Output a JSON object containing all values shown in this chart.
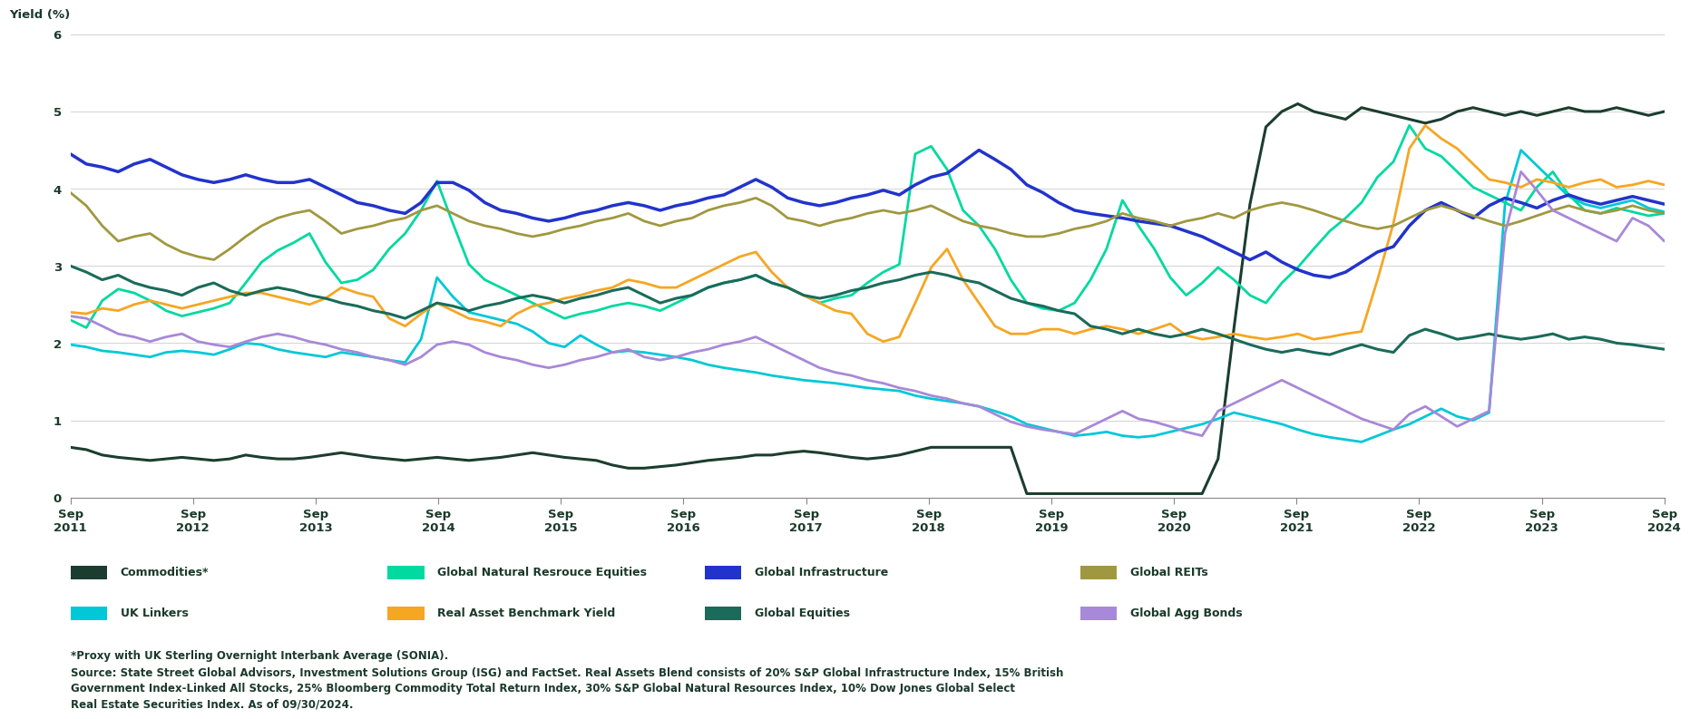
{
  "ylabel": "Yield (%)",
  "ylim": [
    0,
    6
  ],
  "yticks": [
    0,
    1,
    2,
    3,
    4,
    5,
    6
  ],
  "x_labels": [
    "Sep\n2011",
    "Sep\n2012",
    "Sep\n2013",
    "Sep\n2014",
    "Sep\n2015",
    "Sep\n2016",
    "Sep\n2017",
    "Sep\n2018",
    "Sep\n2019",
    "Sep\n2020",
    "Sep\n2021",
    "Sep\n2022",
    "Sep\n2023",
    "Sep\n2024"
  ],
  "background_color": "#ffffff",
  "text_color": "#1a3a2a",
  "footnote1": "*Proxy with UK Sterling Overnight Interbank Average (SONIA).",
  "footnote2": "Source: State Street Global Advisors, Investment Solutions Group (ISG) and FactSet. Real Assets Blend consists of 20% S&P Global Infrastructure Index, 15% British\nGovernment Index-Linked All Stocks, 25% Bloomberg Commodity Total Return Index, 30% S&P Global Natural Resources Index, 10% Dow Jones Global Select\nReal Estate Securities Index. As of 09/30/2024.",
  "series": [
    {
      "label": "Commodities*",
      "color": "#1b3d2f",
      "linewidth": 2.2,
      "values": [
        0.65,
        0.62,
        0.55,
        0.52,
        0.5,
        0.48,
        0.5,
        0.52,
        0.5,
        0.48,
        0.5,
        0.55,
        0.52,
        0.5,
        0.5,
        0.52,
        0.55,
        0.58,
        0.55,
        0.52,
        0.5,
        0.48,
        0.5,
        0.52,
        0.5,
        0.48,
        0.5,
        0.52,
        0.55,
        0.58,
        0.55,
        0.52,
        0.5,
        0.48,
        0.42,
        0.38,
        0.38,
        0.4,
        0.42,
        0.45,
        0.48,
        0.5,
        0.52,
        0.55,
        0.55,
        0.58,
        0.6,
        0.58,
        0.55,
        0.52,
        0.5,
        0.52,
        0.55,
        0.6,
        0.65,
        0.65,
        0.65,
        0.65,
        0.65,
        0.65,
        0.05,
        0.05,
        0.05,
        0.05,
        0.05,
        0.05,
        0.05,
        0.05,
        0.05,
        0.05,
        0.05,
        0.05,
        0.5,
        2.2,
        3.8,
        4.8,
        5.0,
        5.1,
        5.0,
        4.95,
        4.9,
        5.05,
        5.0,
        4.95,
        4.9,
        4.85,
        4.9,
        5.0,
        5.05,
        5.0,
        4.95,
        5.0,
        4.95,
        5.0,
        5.05,
        5.0,
        5.0,
        5.05,
        5.0,
        4.95,
        5.0
      ]
    },
    {
      "label": "UK Linkers",
      "color": "#00c8d7",
      "linewidth": 2.0,
      "values": [
        1.98,
        1.95,
        1.9,
        1.88,
        1.85,
        1.82,
        1.88,
        1.9,
        1.88,
        1.85,
        1.92,
        2.0,
        1.98,
        1.92,
        1.88,
        1.85,
        1.82,
        1.88,
        1.85,
        1.82,
        1.78,
        1.75,
        2.05,
        2.85,
        2.6,
        2.4,
        2.35,
        2.3,
        2.25,
        2.15,
        2.0,
        1.95,
        2.1,
        1.98,
        1.88,
        1.9,
        1.88,
        1.85,
        1.82,
        1.78,
        1.72,
        1.68,
        1.65,
        1.62,
        1.58,
        1.55,
        1.52,
        1.5,
        1.48,
        1.45,
        1.42,
        1.4,
        1.38,
        1.32,
        1.28,
        1.25,
        1.22,
        1.18,
        1.12,
        1.05,
        0.95,
        0.9,
        0.85,
        0.8,
        0.82,
        0.85,
        0.8,
        0.78,
        0.8,
        0.85,
        0.9,
        0.95,
        1.02,
        1.1,
        1.05,
        1.0,
        0.95,
        0.88,
        0.82,
        0.78,
        0.75,
        0.72,
        0.8,
        0.88,
        0.95,
        1.05,
        1.15,
        1.05,
        1.0,
        1.1,
        3.8,
        4.5,
        4.3,
        4.1,
        3.9,
        3.8,
        3.75,
        3.8,
        3.85,
        3.75,
        3.7
      ]
    },
    {
      "label": "Global Natural Resrouce Equities",
      "color": "#00d9a0",
      "linewidth": 2.0,
      "values": [
        2.3,
        2.2,
        2.55,
        2.7,
        2.65,
        2.55,
        2.42,
        2.35,
        2.4,
        2.45,
        2.52,
        2.78,
        3.05,
        3.2,
        3.3,
        3.42,
        3.05,
        2.78,
        2.82,
        2.95,
        3.22,
        3.42,
        3.72,
        4.1,
        3.55,
        3.02,
        2.82,
        2.72,
        2.62,
        2.52,
        2.42,
        2.32,
        2.38,
        2.42,
        2.48,
        2.52,
        2.48,
        2.42,
        2.52,
        2.62,
        2.72,
        2.78,
        2.82,
        2.88,
        2.78,
        2.72,
        2.62,
        2.52,
        2.58,
        2.62,
        2.78,
        2.92,
        3.02,
        4.45,
        4.55,
        4.25,
        3.72,
        3.52,
        3.22,
        2.82,
        2.52,
        2.45,
        2.42,
        2.52,
        2.82,
        3.22,
        3.85,
        3.52,
        3.22,
        2.85,
        2.62,
        2.78,
        2.98,
        2.82,
        2.62,
        2.52,
        2.78,
        2.98,
        3.22,
        3.45,
        3.62,
        3.82,
        4.15,
        4.35,
        4.82,
        4.52,
        4.42,
        4.22,
        4.02,
        3.92,
        3.82,
        3.72,
        4.02,
        4.22,
        3.92,
        3.72,
        3.68,
        3.75,
        3.7,
        3.65,
        3.68
      ]
    },
    {
      "label": "Real Asset Benchmark Yield",
      "color": "#f5a623",
      "linewidth": 2.0,
      "values": [
        2.4,
        2.38,
        2.45,
        2.42,
        2.5,
        2.55,
        2.5,
        2.45,
        2.5,
        2.55,
        2.6,
        2.65,
        2.65,
        2.6,
        2.55,
        2.5,
        2.58,
        2.72,
        2.65,
        2.6,
        2.32,
        2.22,
        2.38,
        2.52,
        2.42,
        2.32,
        2.28,
        2.22,
        2.38,
        2.48,
        2.52,
        2.58,
        2.62,
        2.68,
        2.72,
        2.82,
        2.78,
        2.72,
        2.72,
        2.82,
        2.92,
        3.02,
        3.12,
        3.18,
        2.92,
        2.72,
        2.62,
        2.52,
        2.42,
        2.38,
        2.12,
        2.02,
        2.08,
        2.52,
        2.98,
        3.22,
        2.82,
        2.52,
        2.22,
        2.12,
        2.12,
        2.18,
        2.18,
        2.12,
        2.18,
        2.22,
        2.18,
        2.12,
        2.18,
        2.25,
        2.1,
        2.05,
        2.08,
        2.12,
        2.08,
        2.05,
        2.08,
        2.12,
        2.05,
        2.08,
        2.12,
        2.15,
        2.82,
        3.55,
        4.52,
        4.82,
        4.65,
        4.52,
        4.32,
        4.12,
        4.08,
        4.02,
        4.12,
        4.08,
        4.02,
        4.08,
        4.12,
        4.02,
        4.05,
        4.1,
        4.05
      ]
    },
    {
      "label": "Global Infrastructure",
      "color": "#2233cc",
      "linewidth": 2.5,
      "values": [
        4.45,
        4.32,
        4.28,
        4.22,
        4.32,
        4.38,
        4.28,
        4.18,
        4.12,
        4.08,
        4.12,
        4.18,
        4.12,
        4.08,
        4.08,
        4.12,
        4.02,
        3.92,
        3.82,
        3.78,
        3.72,
        3.68,
        3.82,
        4.08,
        4.08,
        3.98,
        3.82,
        3.72,
        3.68,
        3.62,
        3.58,
        3.62,
        3.68,
        3.72,
        3.78,
        3.82,
        3.78,
        3.72,
        3.78,
        3.82,
        3.88,
        3.92,
        4.02,
        4.12,
        4.02,
        3.88,
        3.82,
        3.78,
        3.82,
        3.88,
        3.92,
        3.98,
        3.92,
        4.05,
        4.15,
        4.2,
        4.35,
        4.5,
        4.38,
        4.25,
        4.05,
        3.95,
        3.82,
        3.72,
        3.68,
        3.65,
        3.62,
        3.58,
        3.55,
        3.52,
        3.45,
        3.38,
        3.28,
        3.18,
        3.08,
        3.18,
        3.05,
        2.95,
        2.88,
        2.85,
        2.92,
        3.05,
        3.18,
        3.25,
        3.52,
        3.72,
        3.82,
        3.72,
        3.62,
        3.78,
        3.88,
        3.82,
        3.75,
        3.85,
        3.92,
        3.85,
        3.8,
        3.85,
        3.9,
        3.85,
        3.8
      ]
    },
    {
      "label": "Global Equities",
      "color": "#1a6b5a",
      "linewidth": 2.2,
      "values": [
        3.0,
        2.92,
        2.82,
        2.88,
        2.78,
        2.72,
        2.68,
        2.62,
        2.72,
        2.78,
        2.68,
        2.62,
        2.68,
        2.72,
        2.68,
        2.62,
        2.58,
        2.52,
        2.48,
        2.42,
        2.38,
        2.32,
        2.42,
        2.52,
        2.48,
        2.42,
        2.48,
        2.52,
        2.58,
        2.62,
        2.58,
        2.52,
        2.58,
        2.62,
        2.68,
        2.72,
        2.62,
        2.52,
        2.58,
        2.62,
        2.72,
        2.78,
        2.82,
        2.88,
        2.78,
        2.72,
        2.62,
        2.58,
        2.62,
        2.68,
        2.72,
        2.78,
        2.82,
        2.88,
        2.92,
        2.88,
        2.82,
        2.78,
        2.68,
        2.58,
        2.52,
        2.48,
        2.42,
        2.38,
        2.22,
        2.18,
        2.12,
        2.18,
        2.12,
        2.08,
        2.12,
        2.18,
        2.12,
        2.05,
        1.98,
        1.92,
        1.88,
        1.92,
        1.88,
        1.85,
        1.92,
        1.98,
        1.92,
        1.88,
        2.1,
        2.18,
        2.12,
        2.05,
        2.08,
        2.12,
        2.08,
        2.05,
        2.08,
        2.12,
        2.05,
        2.08,
        2.05,
        2.0,
        1.98,
        1.95,
        1.92
      ]
    },
    {
      "label": "Global REITs",
      "color": "#a09840",
      "linewidth": 2.0,
      "values": [
        3.95,
        3.78,
        3.52,
        3.32,
        3.38,
        3.42,
        3.28,
        3.18,
        3.12,
        3.08,
        3.22,
        3.38,
        3.52,
        3.62,
        3.68,
        3.72,
        3.58,
        3.42,
        3.48,
        3.52,
        3.58,
        3.62,
        3.72,
        3.78,
        3.68,
        3.58,
        3.52,
        3.48,
        3.42,
        3.38,
        3.42,
        3.48,
        3.52,
        3.58,
        3.62,
        3.68,
        3.58,
        3.52,
        3.58,
        3.62,
        3.72,
        3.78,
        3.82,
        3.88,
        3.78,
        3.62,
        3.58,
        3.52,
        3.58,
        3.62,
        3.68,
        3.72,
        3.68,
        3.72,
        3.78,
        3.68,
        3.58,
        3.52,
        3.48,
        3.42,
        3.38,
        3.38,
        3.42,
        3.48,
        3.52,
        3.58,
        3.68,
        3.62,
        3.58,
        3.52,
        3.58,
        3.62,
        3.68,
        3.62,
        3.72,
        3.78,
        3.82,
        3.78,
        3.72,
        3.65,
        3.58,
        3.52,
        3.48,
        3.52,
        3.62,
        3.72,
        3.78,
        3.72,
        3.65,
        3.58,
        3.52,
        3.58,
        3.65,
        3.72,
        3.78,
        3.72,
        3.68,
        3.72,
        3.78,
        3.72,
        3.68
      ]
    },
    {
      "label": "Global Agg Bonds",
      "color": "#a888d8",
      "linewidth": 2.0,
      "values": [
        2.35,
        2.32,
        2.22,
        2.12,
        2.08,
        2.02,
        2.08,
        2.12,
        2.02,
        1.98,
        1.95,
        2.02,
        2.08,
        2.12,
        2.08,
        2.02,
        1.98,
        1.92,
        1.88,
        1.82,
        1.78,
        1.72,
        1.82,
        1.98,
        2.02,
        1.98,
        1.88,
        1.82,
        1.78,
        1.72,
        1.68,
        1.72,
        1.78,
        1.82,
        1.88,
        1.92,
        1.82,
        1.78,
        1.82,
        1.88,
        1.92,
        1.98,
        2.02,
        2.08,
        1.98,
        1.88,
        1.78,
        1.68,
        1.62,
        1.58,
        1.52,
        1.48,
        1.42,
        1.38,
        1.32,
        1.28,
        1.22,
        1.18,
        1.08,
        0.98,
        0.92,
        0.88,
        0.85,
        0.82,
        0.92,
        1.02,
        1.12,
        1.02,
        0.98,
        0.92,
        0.85,
        0.8,
        1.12,
        1.22,
        1.32,
        1.42,
        1.52,
        1.42,
        1.32,
        1.22,
        1.12,
        1.02,
        0.95,
        0.88,
        1.08,
        1.18,
        1.05,
        0.92,
        1.02,
        1.12,
        3.42,
        4.22,
        3.98,
        3.72,
        3.62,
        3.52,
        3.42,
        3.32,
        3.62,
        3.52,
        3.32
      ]
    }
  ],
  "legend_row1": [
    {
      "label": "Commodities*",
      "color": "#1b3d2f"
    },
    {
      "label": "Global Natural Resrouce Equities",
      "color": "#00d9a0"
    },
    {
      "label": "Global Infrastructure",
      "color": "#2233cc"
    },
    {
      "label": "Global REITs",
      "color": "#a09840"
    }
  ],
  "legend_row2": [
    {
      "label": "UK Linkers",
      "color": "#00c8d7"
    },
    {
      "label": "Real Asset Benchmark Yield",
      "color": "#f5a623"
    },
    {
      "label": "Global Equities",
      "color": "#1a6b5a"
    },
    {
      "label": "Global Agg Bonds",
      "color": "#a888d8"
    }
  ]
}
